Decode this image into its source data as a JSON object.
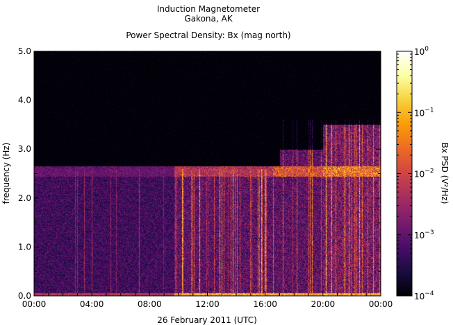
{
  "chart_data": {
    "type": "heatmap",
    "title": [
      "Induction Magnetometer",
      "Gakona, AK"
    ],
    "subtitle": "Power Spectral Density: Bx (mag north)",
    "xlabel": "26 February 2011 (UTC)",
    "ylabel": "frequency (Hz)",
    "x_ticks": [
      "00:00",
      "04:00",
      "08:00",
      "12:00",
      "16:00",
      "20:00",
      "00:00"
    ],
    "x_range_hours": [
      0,
      24
    ],
    "y_ticks": [
      "0.0",
      "1.0",
      "2.0",
      "3.0",
      "4.0",
      "5.0"
    ],
    "ylim": [
      0,
      5
    ],
    "colorbar": {
      "label": "Bx PSD (V²/Hz)",
      "scale": "log",
      "range": [
        0.0001,
        1
      ],
      "ticks": [
        {
          "value": 1,
          "mantissa": "10",
          "exp": "0"
        },
        {
          "value": 0.1,
          "mantissa": "10",
          "exp": "−1"
        },
        {
          "value": 0.01,
          "mantissa": "10",
          "exp": "−2"
        },
        {
          "value": 0.001,
          "mantissa": "10",
          "exp": "−3"
        },
        {
          "value": 0.0001,
          "mantissa": "10",
          "exp": "−4"
        }
      ],
      "colormap": [
        "#000004",
        "#1b0c41",
        "#4a0c6b",
        "#781c6d",
        "#a52c60",
        "#cf4446",
        "#ed6925",
        "#fb9b06",
        "#f7d13d",
        "#fcffa4",
        "#ffffff"
      ]
    },
    "features": {
      "schumann_band_hz": [
        2.45,
        2.65
      ],
      "noise_step_hour": 9.7,
      "broadband_extension_hz": 3.5,
      "broadband_start_hour": 20.0,
      "upper_freq_limit_hz": 3.6
    }
  }
}
